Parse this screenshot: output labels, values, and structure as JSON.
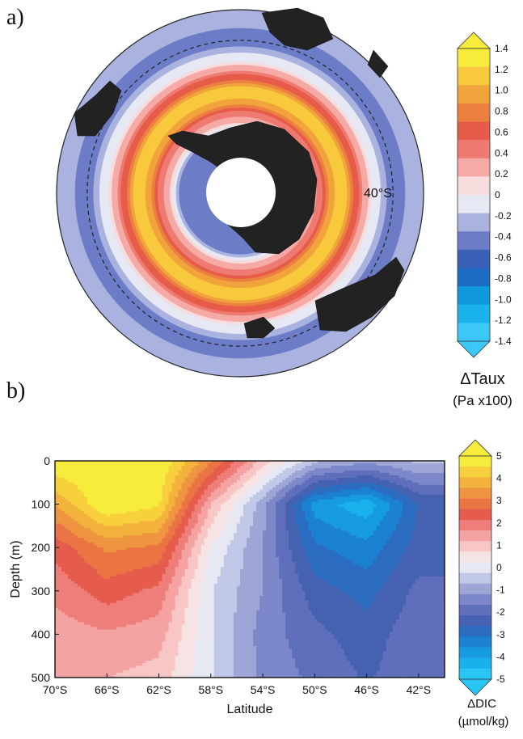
{
  "panels": {
    "a_label": "a)",
    "b_label": "b)"
  },
  "chart_data": [
    {
      "type": "map",
      "panel": "a",
      "projection": "polar-stereographic-south",
      "variable": "ΔTaux",
      "units": "(Pa x100)",
      "circle_label": "40°S",
      "zonal_profile_approx": [
        {
          "lat": -70,
          "value": -0.5
        },
        {
          "lat": -66,
          "value": 0.2
        },
        {
          "lat": -62,
          "value": 0.6
        },
        {
          "lat": -58,
          "value": 1.2
        },
        {
          "lat": -54,
          "value": 1.0
        },
        {
          "lat": -50,
          "value": 0.4
        },
        {
          "lat": -46,
          "value": 0.0
        },
        {
          "lat": -42,
          "value": -0.3
        },
        {
          "lat": -38,
          "value": -0.5
        },
        {
          "lat": -34,
          "value": -0.2
        }
      ],
      "colorbar": {
        "ticks": [
          "1.4",
          "1.2",
          "1.0",
          "0.8",
          "0.6",
          "0.4",
          "0.2",
          "0",
          "-0.2",
          "-0.4",
          "-0.6",
          "-0.8",
          "-1.0",
          "-1.2",
          "-1.4"
        ],
        "colors": [
          "#f7ec3c",
          "#f8c93c",
          "#f2a43c",
          "#ec8040",
          "#e75c48",
          "#ee7a72",
          "#f5aaa6",
          "#f6dcdd",
          "#e6e8f4",
          "#aab3df",
          "#6c7cc7",
          "#3a60b6",
          "#1d6cc4",
          "#1098dc",
          "#19b3ee",
          "#3cc8f7"
        ]
      }
    },
    {
      "type": "contour",
      "panel": "b",
      "variable": "ΔDIC",
      "units": "(µmol/kg)",
      "xlabel": "Latitude",
      "ylabel": "Depth (m)",
      "xticks": [
        "70°S",
        "66°S",
        "62°S",
        "58°S",
        "54°S",
        "50°S",
        "46°S",
        "42°S"
      ],
      "xlim": [
        -70,
        -40
      ],
      "ylim": [
        0,
        500
      ],
      "yticks": [
        "0",
        "100",
        "200",
        "300",
        "400",
        "500"
      ],
      "profiles_approx": [
        {
          "lat": -70,
          "values": [
            5.0,
            3.6,
            2.3,
            1.8,
            1.4,
            1.2
          ]
        },
        {
          "lat": -66,
          "values": [
            5.0,
            5.0,
            3.2,
            2.4,
            1.6,
            1.2
          ]
        },
        {
          "lat": -62,
          "values": [
            5.0,
            4.6,
            3.0,
            2.0,
            1.4,
            1.0
          ]
        },
        {
          "lat": -58,
          "values": [
            3.2,
            1.2,
            0.2,
            -0.2,
            -0.2,
            -0.2
          ]
        },
        {
          "lat": -54,
          "values": [
            1.0,
            -1.0,
            -1.2,
            -1.2,
            -1.4,
            -1.3
          ]
        },
        {
          "lat": -50,
          "values": [
            -0.6,
            -3.8,
            -3.0,
            -2.4,
            -2.0,
            -1.8
          ]
        },
        {
          "lat": -46,
          "values": [
            -1.0,
            -4.4,
            -3.4,
            -2.8,
            -2.4,
            -2.2
          ]
        },
        {
          "lat": -42,
          "values": [
            -0.6,
            -2.6,
            -2.4,
            -2.0,
            -1.8,
            -1.8
          ]
        }
      ],
      "colorbar": {
        "ticks": [
          "5",
          "4",
          "3",
          "2",
          "1",
          "0",
          "-1",
          "-2",
          "-3",
          "-4",
          "-5"
        ],
        "colors": [
          "#f7ec3c",
          "#f8cf3c",
          "#f3b23c",
          "#ef9440",
          "#ea7444",
          "#e55c4c",
          "#ee7e7a",
          "#f4a3a2",
          "#f7c6c5",
          "#f6e4e5",
          "#e6e8f4",
          "#c2c8e8",
          "#9ea6d8",
          "#7c88c9",
          "#5f6fbc",
          "#4562b1",
          "#2b6cc0",
          "#1a82d0",
          "#169be0",
          "#18b1ec",
          "#28c5f5"
        ]
      }
    }
  ]
}
